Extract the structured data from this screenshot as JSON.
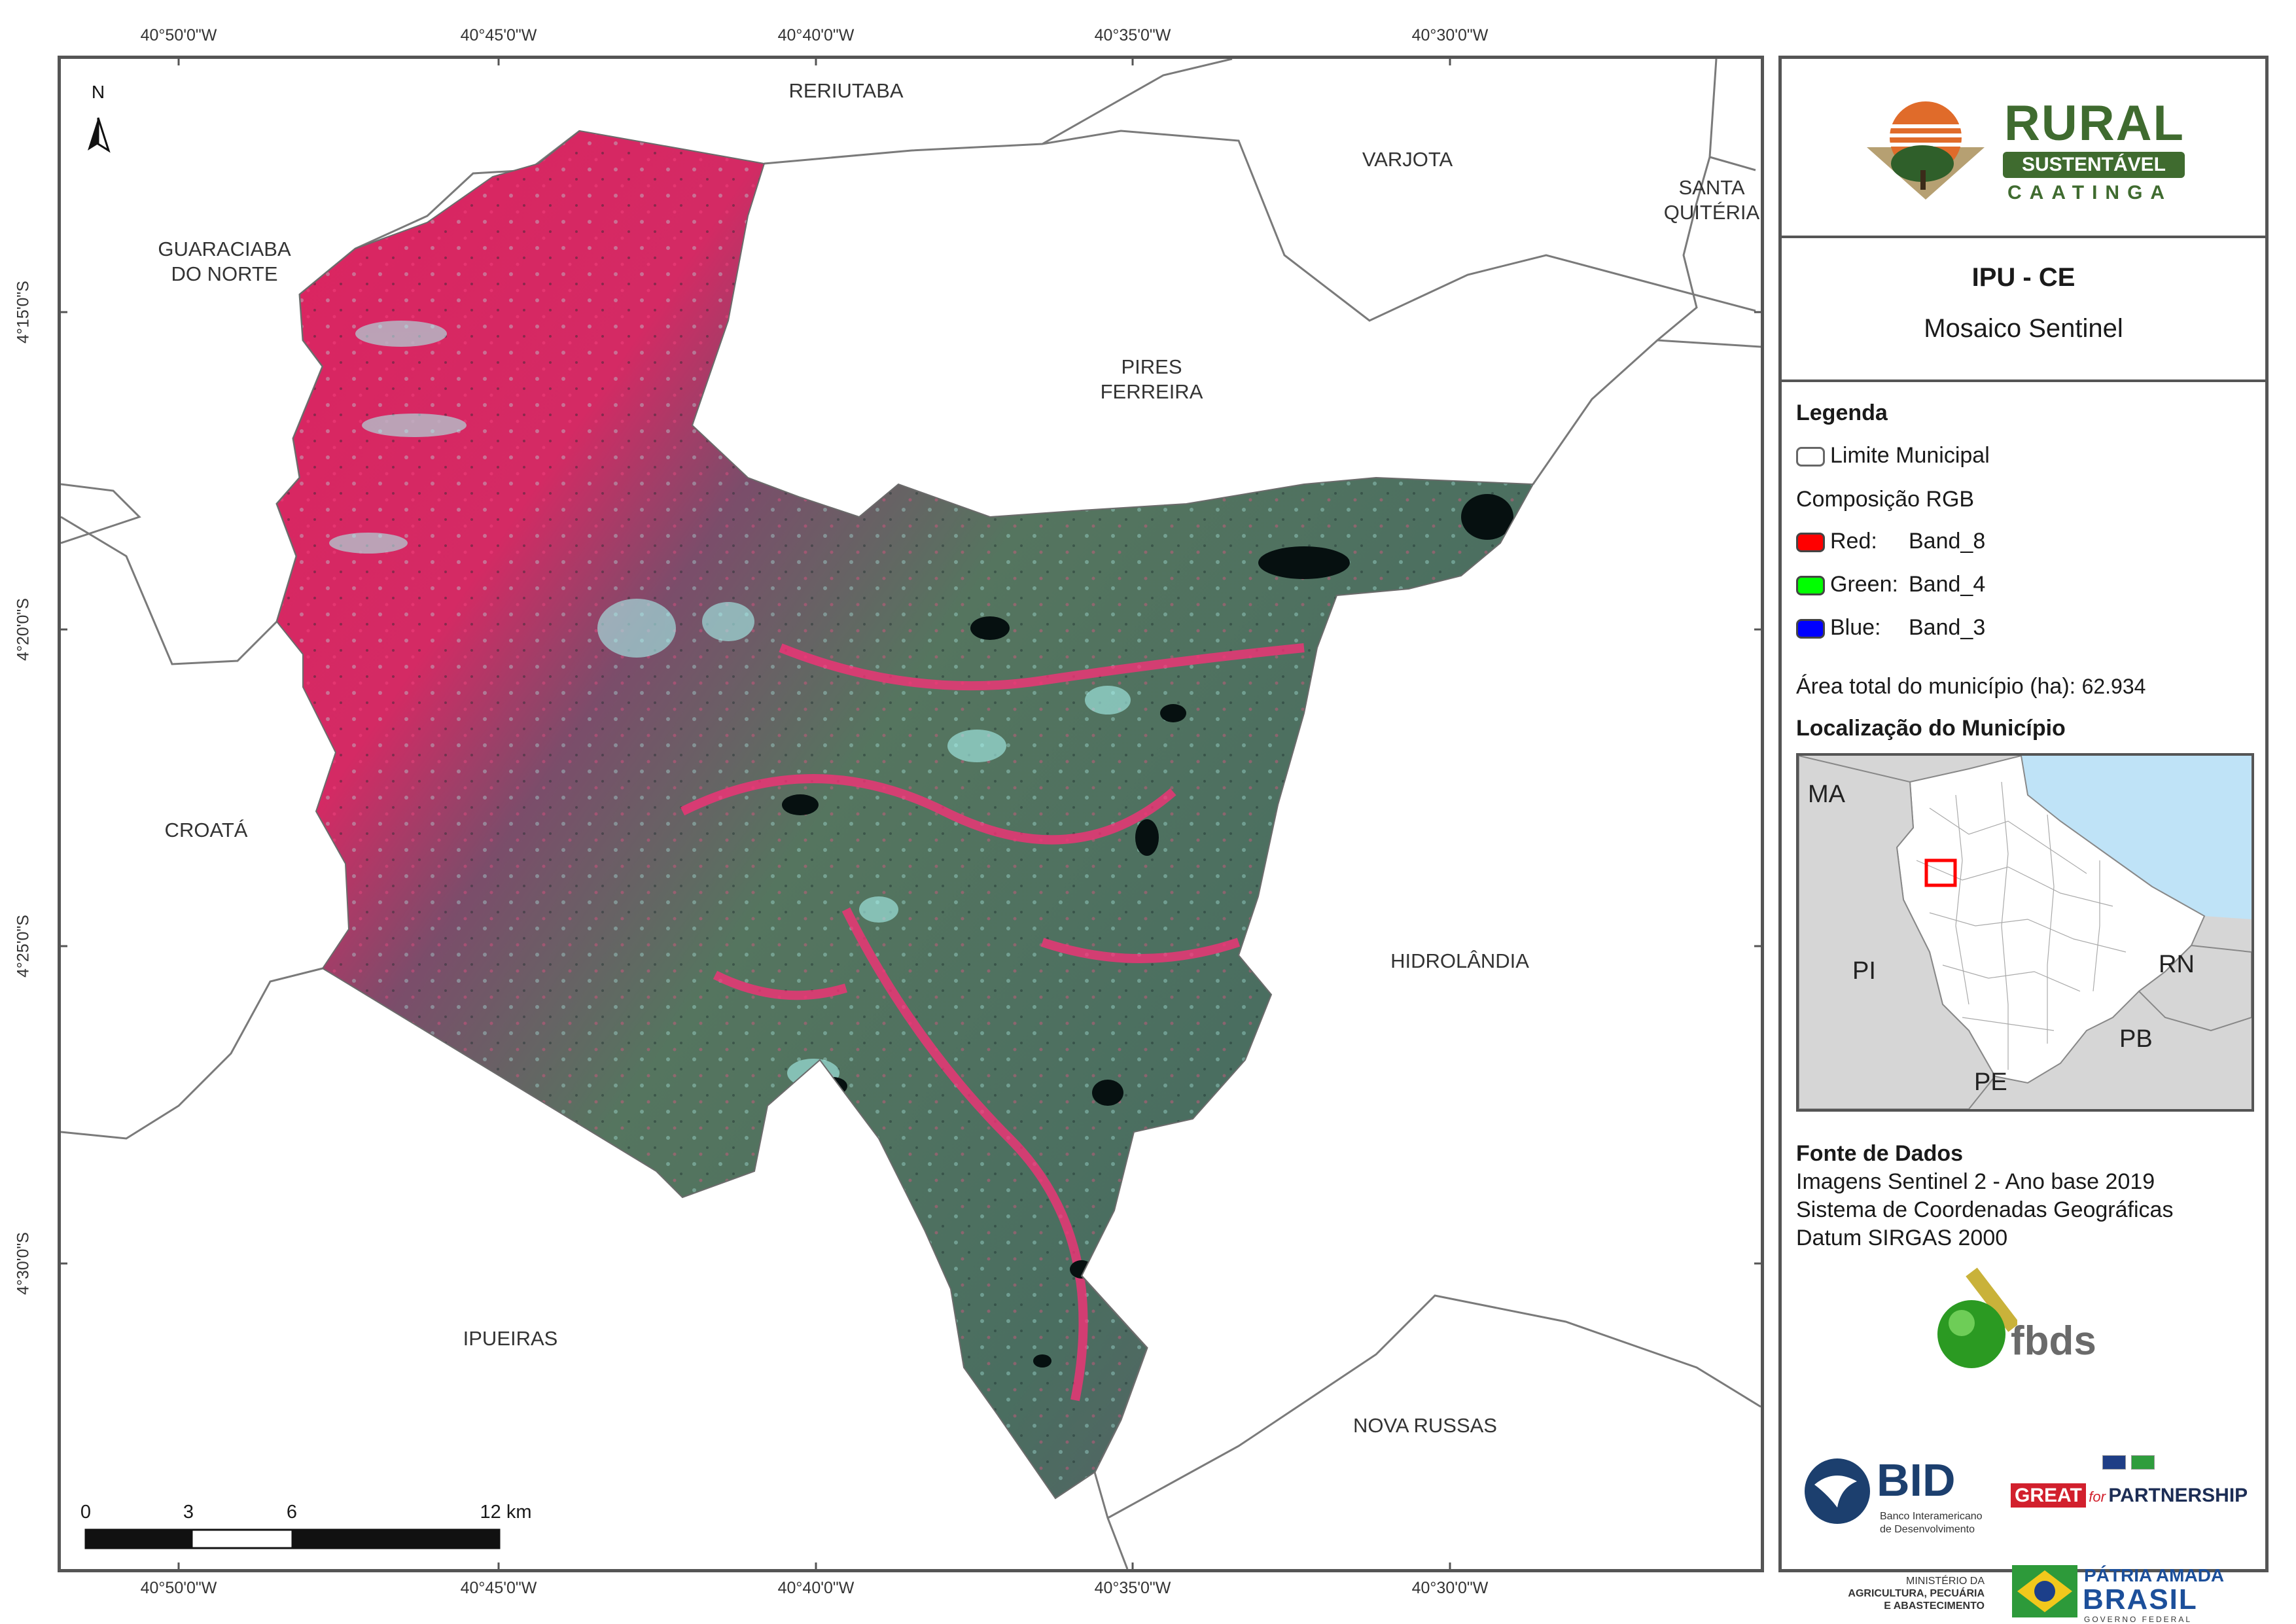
{
  "coordinates": {
    "longitudes": [
      "40°50'0\"W",
      "40°45'0\"W",
      "40°40'0\"W",
      "40°35'0\"W",
      "40°30'0\"W"
    ],
    "latitudes": [
      "4°15'0\"S",
      "4°20'0\"S",
      "4°25'0\"S",
      "4°30'0\"S"
    ]
  },
  "north_arrow": "N",
  "municipalities": {
    "reriutaba": "RERIUTABA",
    "varjota": "VARJOTA",
    "santa_quiteria": "SANTA\nQUITÉRIA",
    "guaraciaba": "GUARACIABA\nDO NORTE",
    "pires_ferreira": "PIRES\nFERREIRA",
    "croata": "CROATÁ",
    "hidrolandia": "HIDROLÂNDIA",
    "ipueiras": "IPUEIRAS",
    "nova_russas": "NOVA RUSSAS"
  },
  "scale_bar": {
    "labels": [
      "0",
      "3",
      "6",
      "12 km"
    ],
    "ticks_km": [
      0,
      3,
      6,
      12
    ]
  },
  "logos": {
    "rural_line1": "RURAL",
    "rural_line2": "SUSTENTÁVEL",
    "rural_line3": "CAATINGA",
    "fbds": "fbds",
    "bid": "BID",
    "bid_sub1": "Banco Interamericano",
    "bid_sub2": "de Desenvolvimento",
    "great_word": "GREAT",
    "great_for": "for",
    "great_partnership": "PARTNERSHIP",
    "mapa_line1": "MINISTÉRIO DA",
    "mapa_line2": "AGRICULTURA, PECUÁRIA",
    "mapa_line3": "E ABASTECIMENTO",
    "brasil_line1": "PÁTRIA AMADA",
    "brasil_line2": "BRASIL",
    "brasil_line3": "GOVERNO FEDERAL"
  },
  "title": {
    "name": "IPU - CE",
    "subtitle": "Mosaico Sentinel"
  },
  "legend": {
    "heading": "Legenda",
    "limit_label": "Limite Municipal",
    "rgb_heading": "Composição RGB",
    "bands": [
      {
        "channel": "Red:",
        "band": "Band_8",
        "color": "#ff0000"
      },
      {
        "channel": "Green:",
        "band": "Band_4",
        "color": "#00ff00"
      },
      {
        "channel": "Blue:",
        "band": "Band_3",
        "color": "#0000ff"
      }
    ],
    "area_label": "Área total do município (ha):",
    "area_value": "62.934"
  },
  "location": {
    "heading": "Localização do Município",
    "states": [
      "MA",
      "PI",
      "RN",
      "PB",
      "PE"
    ]
  },
  "sources": {
    "heading": "Fonte de Dados",
    "lines": [
      "Imagens Sentinel 2 - Ano base 2019",
      "Sistema de Coordenadas Geográficas",
      "Datum SIRGAS 2000"
    ]
  },
  "colors": {
    "imagery_red": "#d81e5b",
    "imagery_green": "#4f7a68",
    "imagery_cyan": "#9ff5ee",
    "boundary": "#777777",
    "rural_green": "#3f6b2f"
  }
}
